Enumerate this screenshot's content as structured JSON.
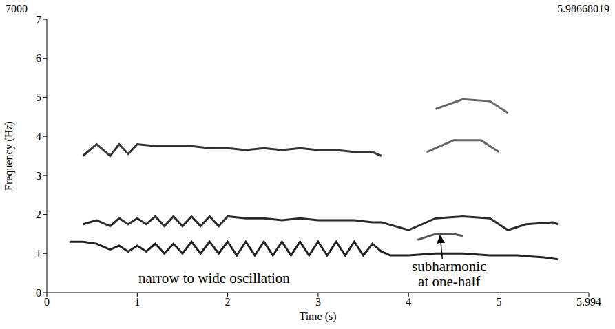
{
  "chart_data": {
    "type": "line",
    "corner_labels": {
      "top_left": "7000",
      "top_right": "5.98668019"
    },
    "xlabel": "Time (s)",
    "ylabel": "Frequency (Hz)",
    "xlim": [
      0,
      5.994
    ],
    "xticks": [
      0,
      1,
      2,
      3,
      4,
      5,
      5.994
    ],
    "ylim": [
      0,
      7
    ],
    "yticks": [
      0,
      1,
      2,
      3,
      4,
      5,
      6,
      7
    ],
    "grid": false,
    "marker": "none",
    "line_style": "solid",
    "series": [
      {
        "color": "#222222",
        "x": [
          0.25,
          0.4,
          0.55,
          0.7,
          0.8,
          0.9,
          1.0,
          1.1,
          1.2,
          1.3,
          1.4,
          1.5,
          1.6,
          1.7,
          1.8,
          1.9,
          2.0,
          2.1,
          2.2,
          2.3,
          2.4,
          2.5,
          2.6,
          2.7,
          2.8,
          2.9,
          3.0,
          3.1,
          3.2,
          3.3,
          3.4,
          3.5,
          3.6,
          3.7,
          3.8,
          4.0,
          4.3,
          4.6,
          4.9,
          5.2,
          5.5,
          5.65
        ],
        "values": [
          1.3,
          1.3,
          1.25,
          1.1,
          1.2,
          1.05,
          1.2,
          1.05,
          1.25,
          1.0,
          1.25,
          1.0,
          1.3,
          1.0,
          1.3,
          1.0,
          1.3,
          0.95,
          1.3,
          0.95,
          1.3,
          0.95,
          1.3,
          0.95,
          1.3,
          0.95,
          1.3,
          0.95,
          1.3,
          0.95,
          1.3,
          0.95,
          1.25,
          1.05,
          0.95,
          0.95,
          1.0,
          1.0,
          0.95,
          0.95,
          0.9,
          0.85
        ]
      },
      {
        "color": "#2a2a2a",
        "x": [
          0.4,
          0.55,
          0.7,
          0.8,
          0.9,
          1.0,
          1.1,
          1.2,
          1.3,
          1.4,
          1.5,
          1.6,
          1.7,
          1.8,
          1.9,
          2.0,
          2.2,
          2.4,
          2.6,
          2.8,
          3.0,
          3.2,
          3.4,
          3.6,
          3.7,
          4.0,
          4.3,
          4.6,
          4.9,
          5.1,
          5.3,
          5.6,
          5.65
        ],
        "values": [
          1.75,
          1.85,
          1.7,
          1.9,
          1.75,
          1.9,
          1.75,
          1.95,
          1.7,
          1.95,
          1.7,
          1.95,
          1.7,
          1.95,
          1.7,
          1.95,
          1.9,
          1.9,
          1.85,
          1.9,
          1.85,
          1.85,
          1.85,
          1.8,
          1.8,
          1.6,
          1.9,
          1.95,
          1.9,
          1.6,
          1.75,
          1.8,
          1.75
        ]
      },
      {
        "color": "#333333",
        "x": [
          0.4,
          0.55,
          0.7,
          0.8,
          0.9,
          1.0,
          1.2,
          1.4,
          1.6,
          1.8,
          2.0,
          2.2,
          2.4,
          2.6,
          2.8,
          3.0,
          3.2,
          3.4,
          3.6,
          3.7
        ],
        "values": [
          3.5,
          3.8,
          3.5,
          3.8,
          3.55,
          3.8,
          3.75,
          3.75,
          3.75,
          3.7,
          3.7,
          3.65,
          3.7,
          3.65,
          3.7,
          3.65,
          3.65,
          3.6,
          3.6,
          3.5
        ]
      },
      {
        "color": "#555555",
        "x": [
          4.1,
          4.3,
          4.5,
          4.6
        ],
        "values": [
          1.35,
          1.5,
          1.5,
          1.45
        ]
      },
      {
        "color": "#666666",
        "x": [
          4.2,
          4.5,
          4.8,
          5.0
        ],
        "values": [
          3.6,
          3.9,
          3.9,
          3.6
        ]
      },
      {
        "color": "#666666",
        "x": [
          4.3,
          4.6,
          4.9,
          5.1
        ],
        "values": [
          4.7,
          4.95,
          4.9,
          4.6
        ]
      }
    ],
    "annotations": [
      {
        "text": "narrow to wide oscillation",
        "x": 1.85,
        "y": 0.25
      },
      {
        "text": "subharmonic at one-half",
        "x": 4.45,
        "y": 0.55,
        "arrow_to": [
          4.35,
          1.45
        ]
      }
    ]
  }
}
